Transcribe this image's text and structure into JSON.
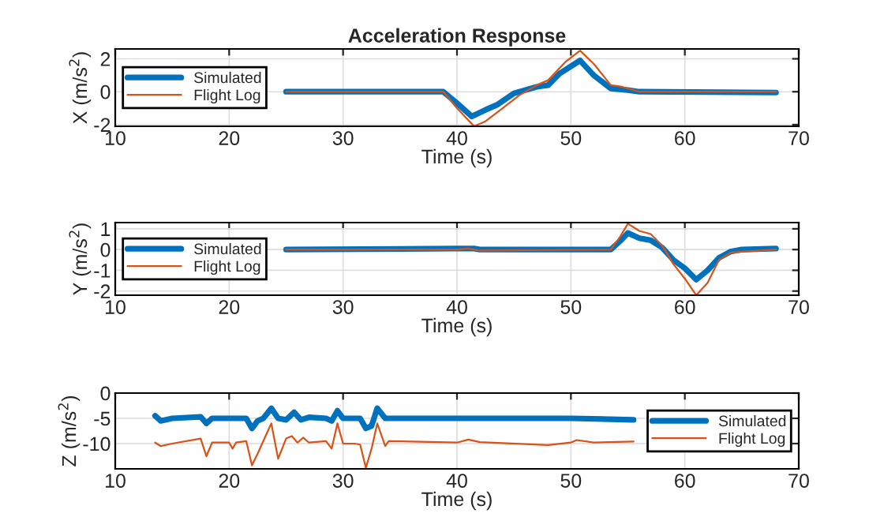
{
  "chart_data": [
    {
      "type": "line",
      "title": "Acceleration Response",
      "xlabel": "Time (s)",
      "ylabel": "X (m/s$^{2}$)",
      "xlim": [
        10,
        70
      ],
      "xticks": [
        10,
        20,
        30,
        40,
        50,
        60,
        70
      ],
      "ylim": [
        -2.1,
        2.6
      ],
      "yticks": [
        -2,
        0,
        2
      ],
      "grid": true,
      "legend": "left",
      "series": [
        {
          "name": "Simulated",
          "color": "#0072bd",
          "x": [
            25,
            38.8,
            40,
            41.3,
            42.5,
            43.5,
            45,
            47,
            48,
            49,
            50.8,
            52,
            53.5,
            55,
            56,
            68
          ],
          "values": [
            0,
            0,
            -0.7,
            -1.5,
            -1.1,
            -0.8,
            -0.1,
            0.3,
            0.4,
            1.1,
            1.9,
            1.0,
            0.2,
            0.1,
            0,
            -0.05
          ]
        },
        {
          "name": "Flight Log",
          "color": "#d95319",
          "x": [
            25,
            38.8,
            40,
            41.5,
            42.5,
            44,
            45.5,
            47,
            48,
            49.5,
            50.8,
            52,
            53.5,
            54.5,
            56,
            68
          ],
          "values": [
            0,
            0,
            -1.0,
            -2.1,
            -1.8,
            -1.0,
            -0.2,
            0.4,
            0.7,
            1.8,
            2.5,
            1.7,
            0.4,
            0.3,
            0,
            0
          ]
        }
      ]
    },
    {
      "type": "line",
      "xlabel": "Time (s)",
      "ylabel": "Y (m/s$^{2}$)",
      "xlim": [
        10,
        70
      ],
      "xticks": [
        10,
        20,
        30,
        40,
        50,
        60,
        70
      ],
      "ylim": [
        -2.2,
        1.3
      ],
      "yticks": [
        -2,
        -1,
        0,
        1
      ],
      "grid": true,
      "legend": "left",
      "series": [
        {
          "name": "Simulated",
          "color": "#0072bd",
          "x": [
            25,
            40,
            41.5,
            42,
            53.5,
            54.3,
            55,
            56,
            57,
            58,
            59,
            60,
            61,
            62,
            63,
            64,
            65,
            68
          ],
          "values": [
            0,
            0.05,
            0.05,
            0,
            0,
            0.4,
            0.8,
            0.55,
            0.45,
            0.1,
            -0.5,
            -0.9,
            -1.45,
            -1.0,
            -0.4,
            -0.1,
            0,
            0.05
          ]
        },
        {
          "name": "Flight Log",
          "color": "#d95319",
          "x": [
            25,
            40,
            41,
            42,
            53.5,
            54.3,
            55,
            56,
            57,
            58,
            59,
            60,
            61,
            62,
            63,
            64,
            65,
            68
          ],
          "values": [
            0,
            0,
            0.05,
            -0.05,
            0,
            0.6,
            1.25,
            0.9,
            0.75,
            0.2,
            -0.7,
            -1.4,
            -2.2,
            -1.6,
            -0.5,
            -0.15,
            -0.1,
            0
          ]
        }
      ]
    },
    {
      "type": "line",
      "xlabel": "Time (s)",
      "ylabel": "Z (m/s$^{2}$)",
      "xlim": [
        10,
        70
      ],
      "xticks": [
        10,
        20,
        30,
        40,
        50,
        60,
        70
      ],
      "ylim": [
        -15,
        0
      ],
      "yticks": [
        -10,
        -5,
        0
      ],
      "grid": true,
      "legend": "right",
      "series": [
        {
          "name": "Simulated",
          "color": "#0072bd",
          "x": [
            13.5,
            14,
            15,
            17.5,
            18,
            18.5,
            21.5,
            22,
            22.5,
            23,
            23.7,
            24.3,
            25,
            25.7,
            26.3,
            27,
            28.5,
            29,
            29.5,
            30,
            31.5,
            32,
            32.5,
            33,
            33.7,
            40,
            50,
            55.5
          ],
          "values": [
            -4.5,
            -5.5,
            -5,
            -4.7,
            -6,
            -5,
            -5,
            -7,
            -5.5,
            -5,
            -3,
            -5,
            -5.3,
            -3.8,
            -5.3,
            -4.8,
            -5.0,
            -5.5,
            -3.5,
            -5,
            -5,
            -7,
            -6.5,
            -3,
            -5,
            -5,
            -5,
            -5.3
          ]
        },
        {
          "name": "Flight Log",
          "color": "#d95319",
          "x": [
            13.5,
            14,
            15,
            17.5,
            18,
            18.5,
            20,
            20.3,
            20.6,
            21.5,
            22,
            22.5,
            23,
            23.7,
            24.3,
            25,
            25.5,
            26,
            26.5,
            27,
            28.5,
            29,
            29.5,
            30,
            31,
            31.5,
            32,
            32.5,
            33,
            33.7,
            34,
            40,
            41,
            42,
            48,
            50,
            50.5,
            52,
            55.5
          ],
          "values": [
            -9.8,
            -10.5,
            -10,
            -9,
            -12.5,
            -9.8,
            -9.8,
            -11,
            -9.8,
            -9.5,
            -14.3,
            -12,
            -9.5,
            -6,
            -13,
            -9,
            -8.5,
            -9.8,
            -8.8,
            -9.8,
            -9.5,
            -11,
            -6,
            -10,
            -10,
            -10.2,
            -14.8,
            -11,
            -6,
            -10.5,
            -9.5,
            -9.8,
            -9.2,
            -9.7,
            -10.3,
            -9.8,
            -9.3,
            -9.8,
            -9.6
          ]
        }
      ]
    }
  ]
}
